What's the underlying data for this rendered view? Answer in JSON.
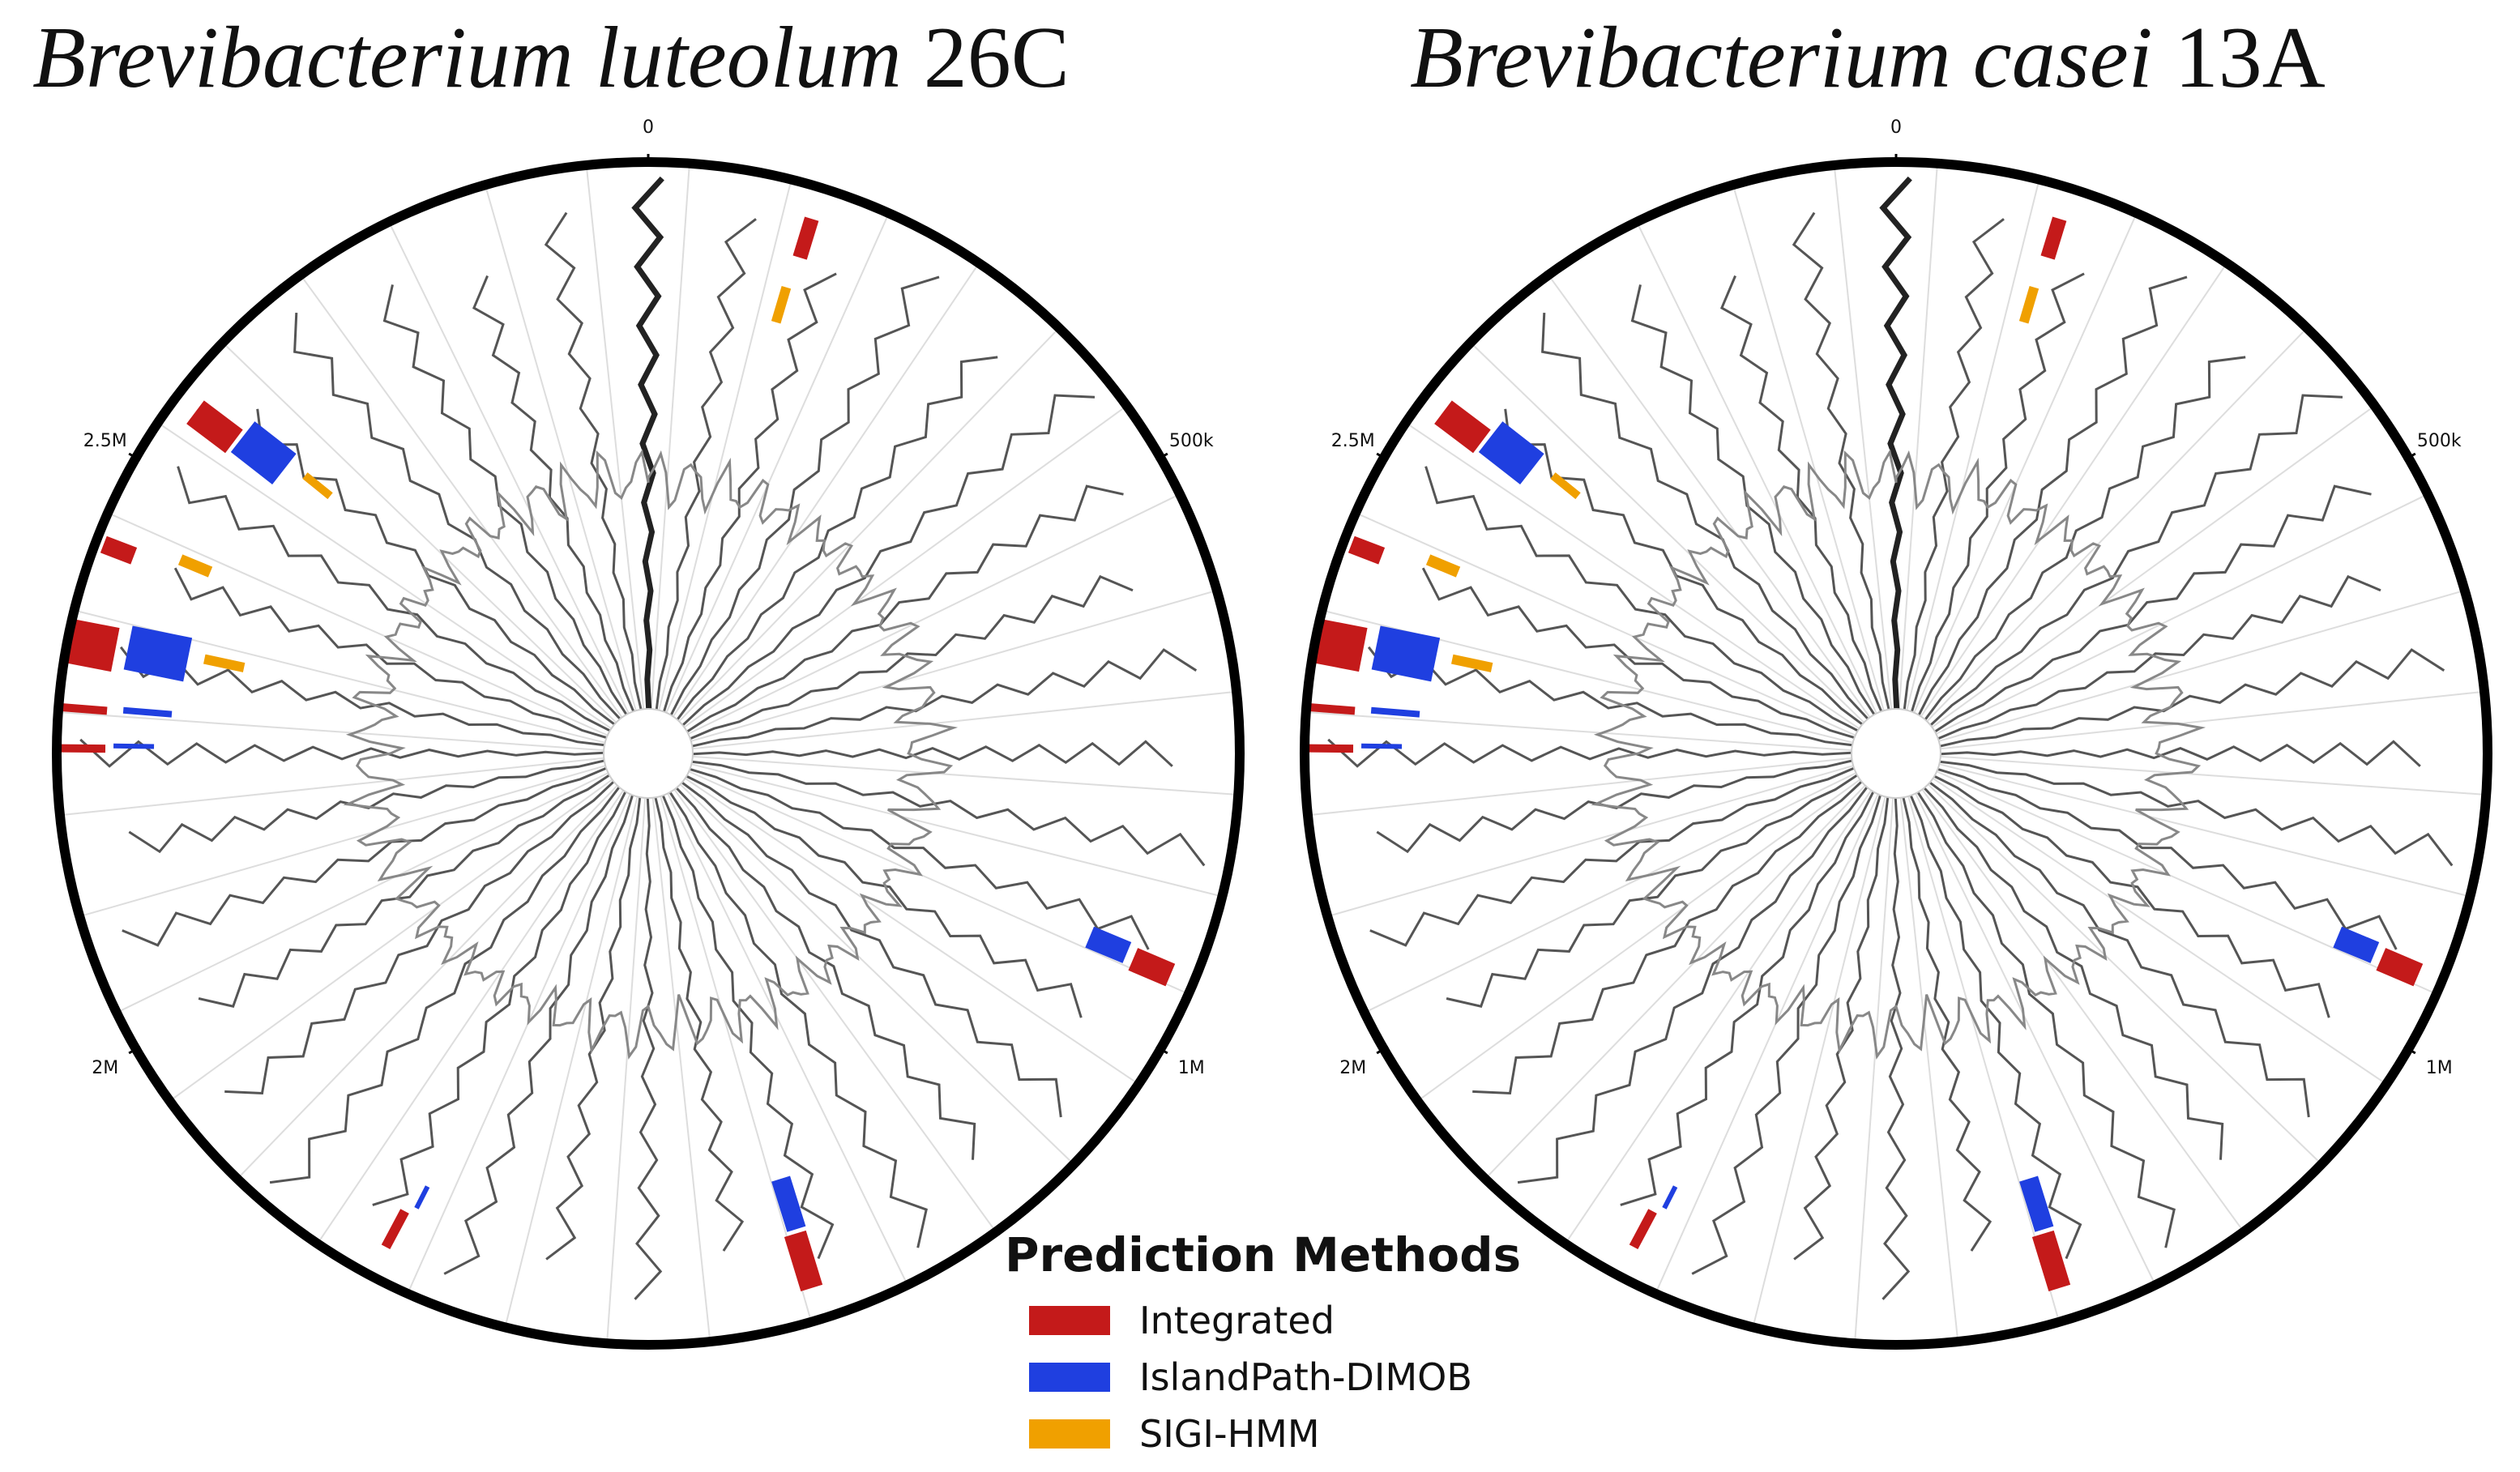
{
  "panels": [
    {
      "title_species": "Brevibacterium luteolum",
      "title_strain": "26C",
      "ticks": [
        {
          "label": "0",
          "position_mb": 0
        },
        {
          "label": "500k",
          "position_mb": 0.5
        },
        {
          "label": "1M",
          "position_mb": 1.0
        },
        {
          "label": "2M",
          "position_mb": 2.0
        },
        {
          "label": "2.5M",
          "position_mb": 2.5
        }
      ]
    },
    {
      "title_species": "Brevibacterium casei",
      "title_strain": "13A",
      "ticks": [
        {
          "label": "0",
          "position_mb": 0
        },
        {
          "label": "500k",
          "position_mb": 0.5
        },
        {
          "label": "1M",
          "position_mb": 1.0
        },
        {
          "label": "2M",
          "position_mb": 2.0
        },
        {
          "label": "2.5M",
          "position_mb": 2.5
        }
      ]
    }
  ],
  "legend": {
    "title": "Prediction Methods",
    "items": [
      {
        "label": "Integrated",
        "color": "#c41a1a"
      },
      {
        "label": "IslandPath-DIMOB",
        "color": "#1f3fe0"
      },
      {
        "label": "SIGI-HMM",
        "color": "#f0a000"
      }
    ]
  }
}
